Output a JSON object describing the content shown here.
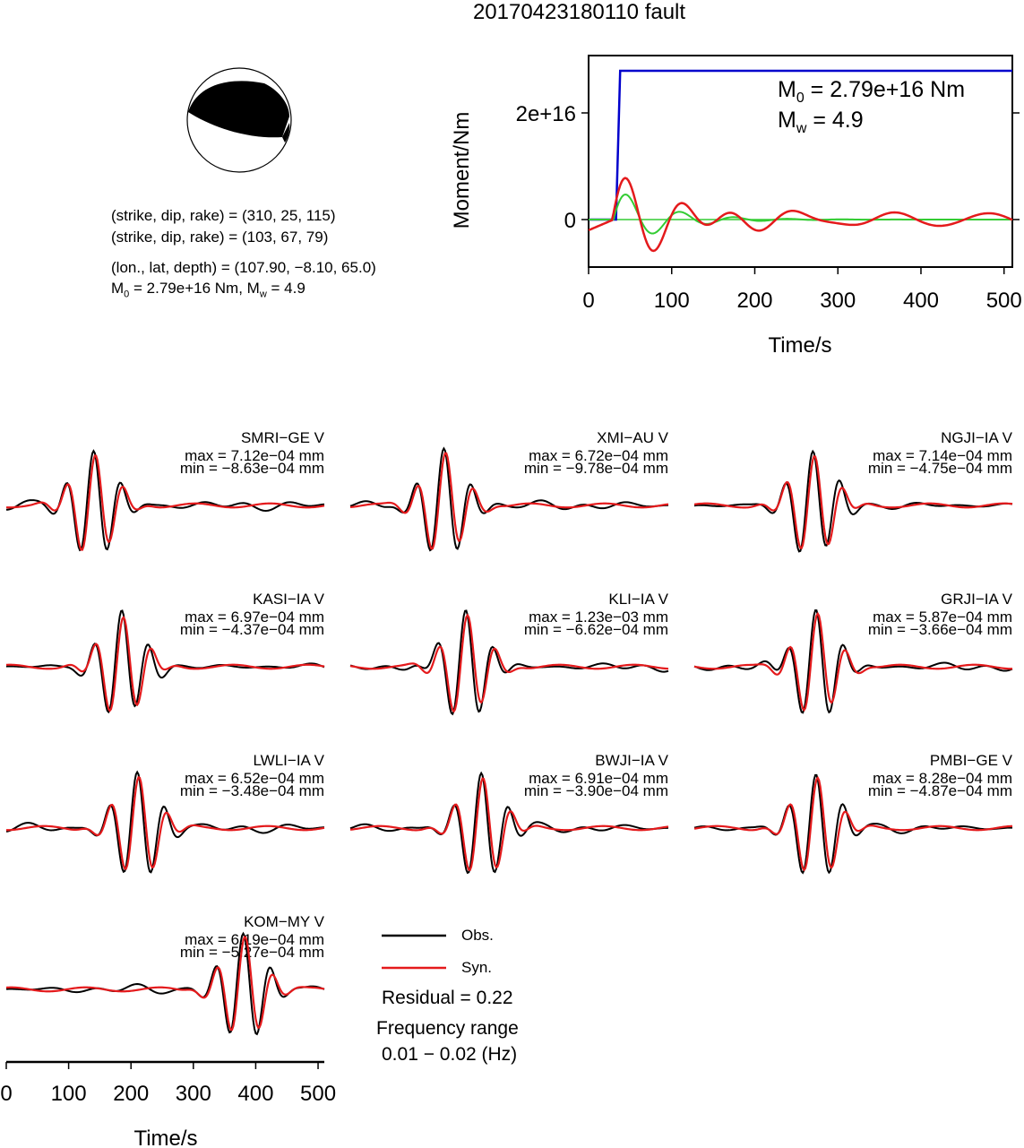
{
  "title": "20170423180110 fault",
  "info": {
    "line1": "(strike, dip, rake) = (310, 25, 115)",
    "line2": "(strike, dip, rake) = (103, 67, 79)",
    "line3": "(lon., lat, depth) = (107.90, −8.10, 65.0)",
    "line4_pre": "M",
    "line4_sub0": "0",
    "line4_mid": " = 2.79e+16 Nm, M",
    "line4_subw": "w",
    "line4_post": " = 4.9"
  },
  "colors": {
    "obs": "#000000",
    "syn": "#e41a1c",
    "moment": "#0000cc",
    "stf": "#33cc33"
  },
  "chart_data": [
    {
      "type": "line",
      "name": "moment-rate",
      "xlabel": "Time/s",
      "ylabel": "Moment/Nm",
      "xlim": [
        0,
        510
      ],
      "xticks": [
        "0",
        "100",
        "200",
        "300",
        "400",
        "500"
      ],
      "yticks": [
        "0",
        "2e+16"
      ],
      "annotation": {
        "m0": "M0 = 2.79e+16 Nm",
        "mw": "Mw = 4.9"
      },
      "series": [
        {
          "values_note_key": "moment",
          "x": [
            0,
            33,
            38,
            510
          ],
          "y": [
            0,
            0,
            2.79e+16,
            2.79e+16
          ]
        }
      ]
    },
    {
      "type": "line",
      "name": "waveforms",
      "xlabel": "Time/s",
      "xlim": [
        0,
        510
      ],
      "xticks": [
        "0",
        "100",
        "200",
        "300",
        "400",
        "500"
      ],
      "legend": {
        "obs": "Obs.",
        "syn": "Syn."
      },
      "residual": "Residual = 0.22",
      "freq_title": "Frequency range",
      "freq_range": "0.01 − 0.02 (Hz)",
      "stations": [
        {
          "label": "SMRI−GE V",
          "max": "max = 7.12e−04 mm",
          "min": "min = −8.63e−04 mm"
        },
        {
          "label": "XMI−AU V",
          "max": "max = 6.72e−04 mm",
          "min": "min = −9.78e−04 mm"
        },
        {
          "label": "NGJI−IA V",
          "max": "max = 7.14e−04 mm",
          "min": "min = −4.75e−04 mm"
        },
        {
          "label": "KASI−IA V",
          "max": "max = 6.97e−04 mm",
          "min": "min = −4.37e−04 mm"
        },
        {
          "label": "KLI−IA V",
          "max": "max = 1.23e−03 mm",
          "min": "min = −6.62e−04 mm"
        },
        {
          "label": "GRJI−IA V",
          "max": "max = 5.87e−04 mm",
          "min": "min = −3.66e−04 mm"
        },
        {
          "label": "LWLI−IA V",
          "max": "max = 6.52e−04 mm",
          "min": "min = −3.48e−04 mm"
        },
        {
          "label": "BWJI−IA V",
          "max": "max = 6.91e−04 mm",
          "min": "min = −3.90e−04 mm"
        },
        {
          "label": "PMBI−GE V",
          "max": "max = 8.28e−04 mm",
          "min": "min = −4.87e−04 mm"
        },
        {
          "label": "KOM−MY V",
          "max": "max = 6.19e−04 mm",
          "min": "min = −5.27e−04 mm"
        }
      ]
    }
  ]
}
